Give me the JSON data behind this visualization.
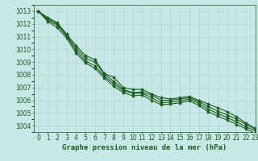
{
  "title": "Graphe pression niveau de la mer (hPa)",
  "xlabel_hours": [
    0,
    1,
    2,
    3,
    4,
    5,
    6,
    7,
    8,
    9,
    10,
    11,
    12,
    13,
    14,
    15,
    16,
    17,
    18,
    19,
    20,
    21,
    22,
    23
  ],
  "ylim": [
    1003.5,
    1013.5
  ],
  "xlim": [
    -0.5,
    23
  ],
  "yticks": [
    1004,
    1005,
    1006,
    1007,
    1008,
    1009,
    1010,
    1011,
    1012,
    1013
  ],
  "bg_color": "#c8e8e8",
  "grid_color": "#b0d0d0",
  "line_colors": [
    "#1a5c1a",
    "#1a5c1a",
    "#1a5c1a",
    "#1a5c1a"
  ],
  "series": [
    [
      1013.0,
      1012.5,
      1012.1,
      1011.2,
      1010.3,
      1009.5,
      1009.2,
      1008.1,
      1007.8,
      1007.0,
      1006.85,
      1006.85,
      1006.5,
      1006.2,
      1006.1,
      1006.2,
      1006.3,
      1006.0,
      1005.7,
      1005.4,
      1005.1,
      1004.7,
      1004.2,
      1003.8
    ],
    [
      1013.0,
      1012.4,
      1012.0,
      1011.1,
      1010.1,
      1009.3,
      1009.0,
      1008.05,
      1007.5,
      1006.85,
      1006.6,
      1006.65,
      1006.4,
      1006.0,
      1006.0,
      1006.1,
      1006.2,
      1005.9,
      1005.5,
      1005.15,
      1004.85,
      1004.5,
      1004.1,
      1003.7
    ],
    [
      1013.0,
      1012.3,
      1011.9,
      1011.05,
      1009.9,
      1009.1,
      1008.7,
      1007.9,
      1007.3,
      1006.75,
      1006.55,
      1006.55,
      1006.2,
      1005.8,
      1005.85,
      1005.95,
      1006.1,
      1005.75,
      1005.3,
      1004.95,
      1004.65,
      1004.3,
      1003.9,
      1003.6
    ],
    [
      1013.0,
      1012.2,
      1011.7,
      1010.9,
      1009.7,
      1008.95,
      1008.5,
      1007.75,
      1007.1,
      1006.6,
      1006.35,
      1006.4,
      1006.0,
      1005.65,
      1005.7,
      1005.8,
      1005.95,
      1005.6,
      1005.1,
      1004.75,
      1004.45,
      1004.1,
      1003.75,
      1003.4
    ]
  ],
  "marker": "*",
  "markersize": 3,
  "linewidth": 0.8,
  "tick_fontsize": 5.5,
  "label_fontsize": 6.5,
  "label_color": "#1a5c1a",
  "tick_color": "#1a5c1a",
  "spine_color": "#1a5c1a"
}
